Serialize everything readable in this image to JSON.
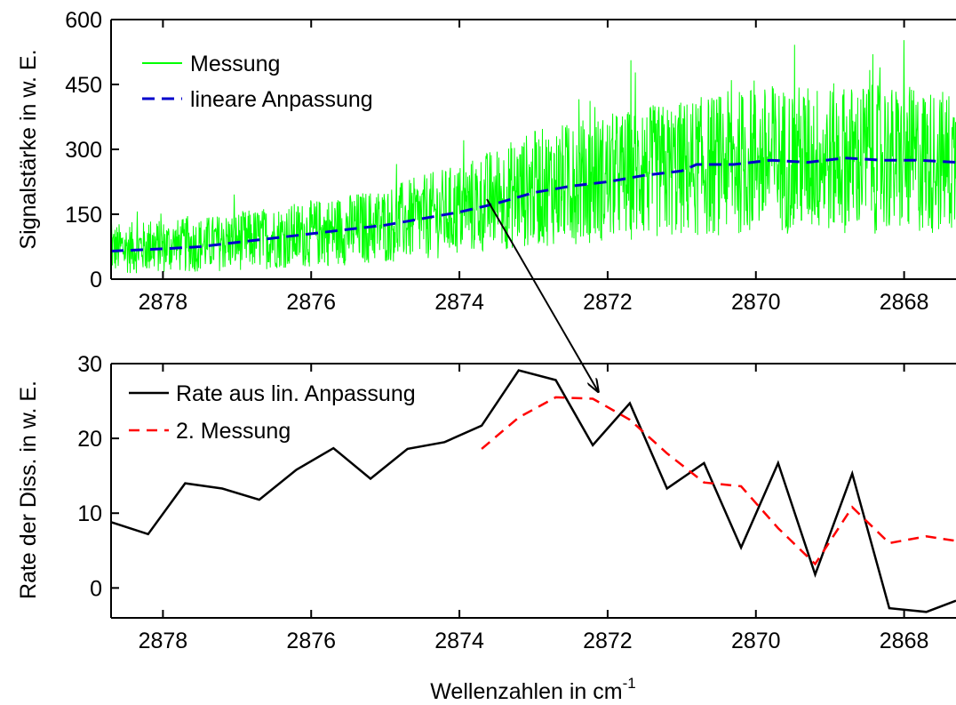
{
  "chart_data": [
    {
      "type": "line",
      "ylabel": "Signalstärke in w. E.",
      "xlim": [
        2878.7,
        2867.3
      ],
      "ylim": [
        0,
        600
      ],
      "x_ticks": [
        2878,
        2876,
        2874,
        2872,
        2870,
        2868
      ],
      "y_ticks": [
        0,
        150,
        300,
        450,
        600
      ],
      "legend_position": "top-left",
      "series": [
        {
          "name": "Messung",
          "color": "#00ff00",
          "style": "noisy-solid",
          "x": [
            2878.7,
            2877.5,
            2876,
            2875,
            2874,
            2873,
            2872,
            2871,
            2870,
            2869,
            2868,
            2867.3
          ],
          "values": [
            70,
            80,
            105,
            125,
            160,
            210,
            235,
            255,
            275,
            280,
            275,
            270
          ]
        },
        {
          "name": "lineare Anpassung",
          "color": "#0000cc",
          "style": "dashed",
          "x": [
            2878.7,
            2878,
            2877.5,
            2877,
            2876.5,
            2876,
            2875.5,
            2875,
            2874.5,
            2874,
            2873.5,
            2873,
            2872.5,
            2872,
            2871.5,
            2871,
            2870.8,
            2870.3,
            2869.8,
            2869.3,
            2868.8,
            2868.3,
            2867.8,
            2867.3
          ],
          "values": [
            65,
            70,
            75,
            85,
            95,
            105,
            115,
            125,
            140,
            155,
            175,
            200,
            215,
            225,
            240,
            250,
            265,
            265,
            275,
            270,
            280,
            275,
            275,
            270
          ]
        }
      ]
    },
    {
      "type": "line",
      "xlabel": "Wellenzahlen in cm",
      "xlabel_sup": "-1",
      "ylabel": "Rate der Diss. in w. E.",
      "xlim": [
        2878.7,
        2867.3
      ],
      "ylim": [
        -4,
        30
      ],
      "x_ticks": [
        2878,
        2876,
        2874,
        2872,
        2870,
        2868
      ],
      "y_ticks": [
        0,
        10,
        20,
        30
      ],
      "legend_position": "top-left",
      "series": [
        {
          "name": "Rate aus lin. Anpassung",
          "color": "#000000",
          "style": "solid",
          "x": [
            2878.7,
            2878.2,
            2877.7,
            2877.2,
            2876.7,
            2876.2,
            2875.7,
            2875.2,
            2874.7,
            2874.2,
            2873.7,
            2873.2,
            2872.7,
            2872.2,
            2871.7,
            2871.2,
            2870.7,
            2870.2,
            2869.7,
            2869.2,
            2868.7,
            2868.2,
            2867.7,
            2867.3
          ],
          "values": [
            8.8,
            7.2,
            14,
            13.3,
            11.8,
            15.8,
            18.7,
            14.6,
            18.6,
            19.5,
            21.7,
            29.1,
            27.8,
            19.1,
            24.7,
            13.3,
            16.7,
            5.4,
            16.7,
            1.8,
            15.3,
            -2.7,
            -3.2,
            -1.7
          ]
        },
        {
          "name": "2. Messung",
          "color": "#ff0000",
          "style": "dashed",
          "x": [
            2873.7,
            2873.2,
            2872.7,
            2872.2,
            2871.7,
            2871.2,
            2870.7,
            2870.2,
            2869.7,
            2869.2,
            2868.7,
            2868.2,
            2867.7,
            2867.3
          ],
          "values": [
            18.6,
            22.8,
            25.5,
            25.3,
            22.5,
            18,
            14.1,
            13.6,
            8,
            3.2,
            10.8,
            6,
            6.9,
            6.3
          ]
        }
      ]
    }
  ],
  "annotation": "arrow-top-to-bottom"
}
